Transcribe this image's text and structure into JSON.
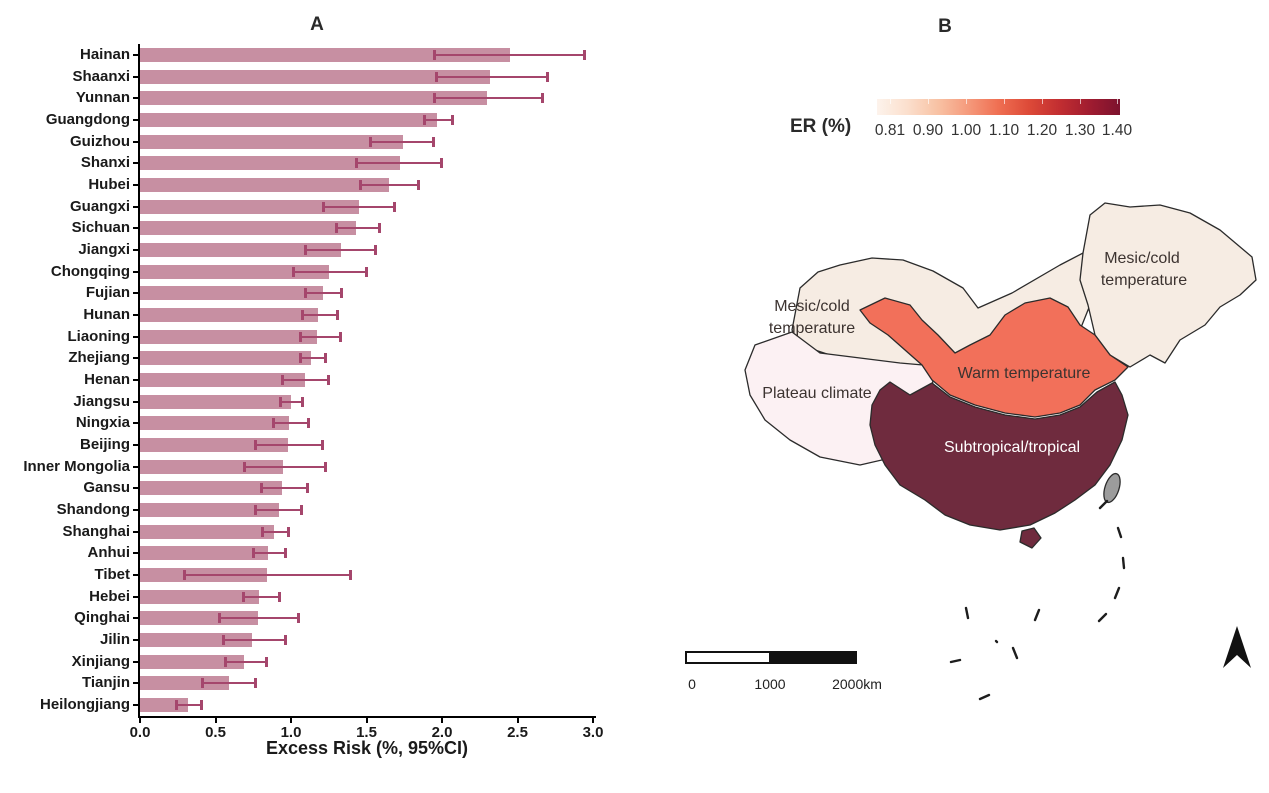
{
  "figure": {
    "panel_a_title": "A",
    "panel_b_title": "B"
  },
  "chart_data": [
    {
      "type": "bar",
      "panel": "A",
      "orientation": "horizontal",
      "title": "A",
      "xlabel": "Excess Risk (%, 95%CI)",
      "xlim": [
        0.0,
        3.0
      ],
      "x_tick_labels": [
        "0.0",
        "0.5",
        "1.0",
        "1.5",
        "2.0",
        "2.5",
        "3.0"
      ],
      "grid": false,
      "bar_color": "#c78fa2",
      "error_bar_color": "#a5466c",
      "categories": [
        "Hainan",
        "Shaanxi",
        "Yunnan",
        "Guangdong",
        "Guizhou",
        "Shanxi",
        "Hubei",
        "Guangxi",
        "Sichuan",
        "Jiangxi",
        "Chongqing",
        "Fujian",
        "Hunan",
        "Liaoning",
        "Zhejiang",
        "Henan",
        "Jiangsu",
        "Ningxia",
        "Beijing",
        "Inner Mongolia",
        "Gansu",
        "Shandong",
        "Shanghai",
        "Anhui",
        "Tibet",
        "Hebei",
        "Qinghai",
        "Jilin",
        "Xinjiang",
        "Tianjin",
        "Heilongjiang"
      ],
      "series": [
        {
          "name": "Excess Risk (%, 95%CI)",
          "values": [
            2.45,
            2.32,
            2.3,
            1.97,
            1.74,
            1.72,
            1.65,
            1.45,
            1.43,
            1.33,
            1.25,
            1.21,
            1.18,
            1.17,
            1.13,
            1.09,
            1.0,
            0.99,
            0.98,
            0.95,
            0.94,
            0.92,
            0.89,
            0.85,
            0.84,
            0.79,
            0.78,
            0.74,
            0.69,
            0.59,
            0.32
          ],
          "ci_low": [
            1.95,
            1.96,
            1.95,
            1.88,
            1.52,
            1.43,
            1.46,
            1.21,
            1.3,
            1.09,
            1.01,
            1.09,
            1.07,
            1.06,
            1.06,
            0.94,
            0.93,
            0.88,
            0.76,
            0.69,
            0.8,
            0.76,
            0.81,
            0.75,
            0.29,
            0.68,
            0.52,
            0.55,
            0.56,
            0.41,
            0.24
          ],
          "ci_high": [
            2.95,
            2.7,
            2.67,
            2.07,
            1.95,
            2.0,
            1.85,
            1.69,
            1.59,
            1.56,
            1.5,
            1.34,
            1.31,
            1.33,
            1.23,
            1.25,
            1.08,
            1.12,
            1.21,
            1.23,
            1.11,
            1.07,
            0.99,
            0.97,
            1.4,
            0.93,
            1.05,
            0.97,
            0.84,
            0.77,
            0.41
          ]
        }
      ]
    },
    {
      "type": "heatmap",
      "subtype": "choropleth-map",
      "panel": "B",
      "title": "B",
      "legend": {
        "title": "ER (%)",
        "position": "top",
        "tick_labels": [
          "0.81",
          "0.90",
          "1.00",
          "1.10",
          "1.20",
          "1.30",
          "1.40"
        ],
        "gradient_stops": [
          "#fdf3ec",
          "#fbdfcd",
          "#f8c2a4",
          "#f59a7c",
          "#ef6f52",
          "#dd4a38",
          "#c22e31",
          "#a01c30",
          "#7c122e"
        ]
      },
      "regions": [
        {
          "label": "Mesic/cold temperature",
          "area": "northwest",
          "color": "#f6ece3"
        },
        {
          "label": "Mesic/cold temperature",
          "area": "northeast",
          "color": "#f6ece3"
        },
        {
          "label": "Plateau climate",
          "area": "southwest-plateau",
          "color": "#fcf1f3"
        },
        {
          "label": "Warm temperature",
          "area": "central-north",
          "color": "#f2705a"
        },
        {
          "label": "Subtropical/tropical",
          "area": "south",
          "color": "#6f2b3e"
        },
        {
          "label": "",
          "area": "taiwan",
          "color": "#9c9c9c"
        }
      ],
      "scale_bar": {
        "labels": [
          "0",
          "1000",
          "2000km"
        ]
      },
      "annotations": [
        "north-arrow",
        "nine-dash-line"
      ]
    }
  ],
  "panel_b": {
    "map_labels": {
      "mesic_nw": {
        "lines": [
          "Mesic/cold",
          "temperature"
        ]
      },
      "mesic_ne": {
        "lines": [
          "Mesic/cold",
          "temperature"
        ]
      },
      "plateau": {
        "lines": [
          "Plateau climate"
        ]
      },
      "warm": {
        "lines": [
          "Warm temperature"
        ]
      },
      "subtropical": {
        "lines": [
          "Subtropical/tropical"
        ]
      }
    },
    "colors": {
      "mesic": "#f6ece3",
      "plateau": "#fcf1f3",
      "warm": "#f2705a",
      "subtropical": "#6f2b3e",
      "taiwan": "#9c9c9c",
      "border": "#2b2b2b"
    }
  }
}
